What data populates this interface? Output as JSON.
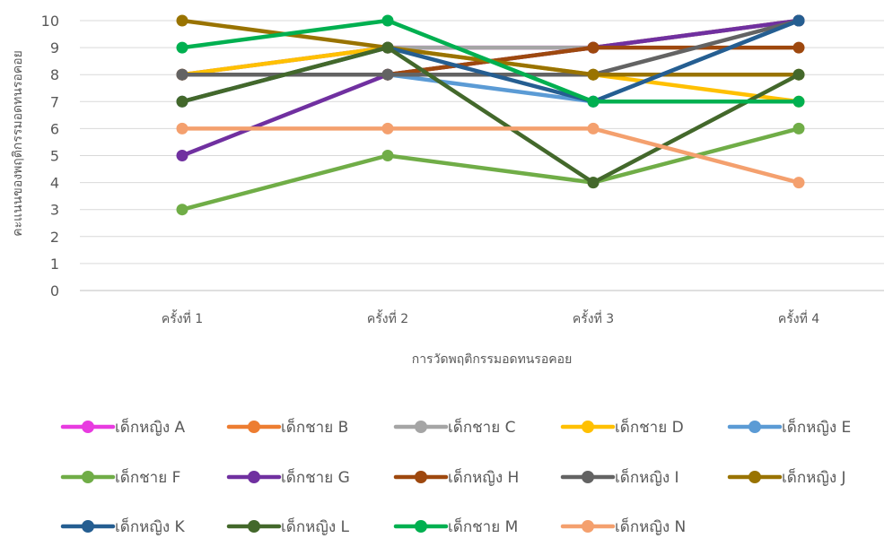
{
  "chart_data": {
    "type": "line",
    "title": "",
    "xlabel": "การวัดพฤติกรรมอดทนรอคอย",
    "ylabel": "คะแนนของพฤติกรรมอดทนรอคอย",
    "ylim": [
      0,
      10
    ],
    "yticks": [
      0,
      1,
      2,
      3,
      4,
      5,
      6,
      7,
      8,
      9,
      10
    ],
    "categories": [
      "ครั้งที่ 1",
      "ครั้งที่ 2",
      "ครั้งที่ 3",
      "ครั้งที่ 4"
    ],
    "grid": true,
    "legend_position": "bottom",
    "series": [
      {
        "name": "เด็กหญิง A",
        "color": "#E83BE0",
        "values": [
          8,
          9,
          9,
          10
        ]
      },
      {
        "name": "เด็กชาย B",
        "color": "#ED7D31",
        "values": [
          8,
          8,
          9,
          10
        ]
      },
      {
        "name": "เด็กชาย C",
        "color": "#A5A5A5",
        "values": [
          8,
          9,
          9,
          10
        ]
      },
      {
        "name": "เด็กชาย D",
        "color": "#FFC000",
        "values": [
          8,
          9,
          8,
          7
        ]
      },
      {
        "name": "เด็กหญิง E",
        "color": "#5B9BD5",
        "values": [
          8,
          8,
          7,
          10
        ]
      },
      {
        "name": "เด็กชาย F",
        "color": "#70AD47",
        "values": [
          3,
          5,
          4,
          6
        ]
      },
      {
        "name": "เด็กชาย G",
        "color": "#7030A0",
        "values": [
          5,
          8,
          9,
          10
        ]
      },
      {
        "name": "เด็กหญิง H",
        "color": "#9E480E",
        "values": [
          8,
          8,
          9,
          9
        ]
      },
      {
        "name": "เด็กหญิง I",
        "color": "#636363",
        "values": [
          8,
          8,
          8,
          10
        ]
      },
      {
        "name": "เด็กหญิง J",
        "color": "#997300",
        "values": [
          10,
          9,
          8,
          8
        ]
      },
      {
        "name": "เด็กหญิง K",
        "color": "#255E91",
        "values": [
          7,
          9,
          7,
          10
        ]
      },
      {
        "name": "เด็กหญิง L",
        "color": "#43682B",
        "values": [
          7,
          9,
          4,
          8
        ]
      },
      {
        "name": "เด็กชาย M",
        "color": "#00B050",
        "values": [
          9,
          10,
          7,
          7
        ]
      },
      {
        "name": "เด็กหญิง N",
        "color": "#F4A06E",
        "values": [
          6,
          6,
          6,
          4
        ]
      }
    ]
  }
}
